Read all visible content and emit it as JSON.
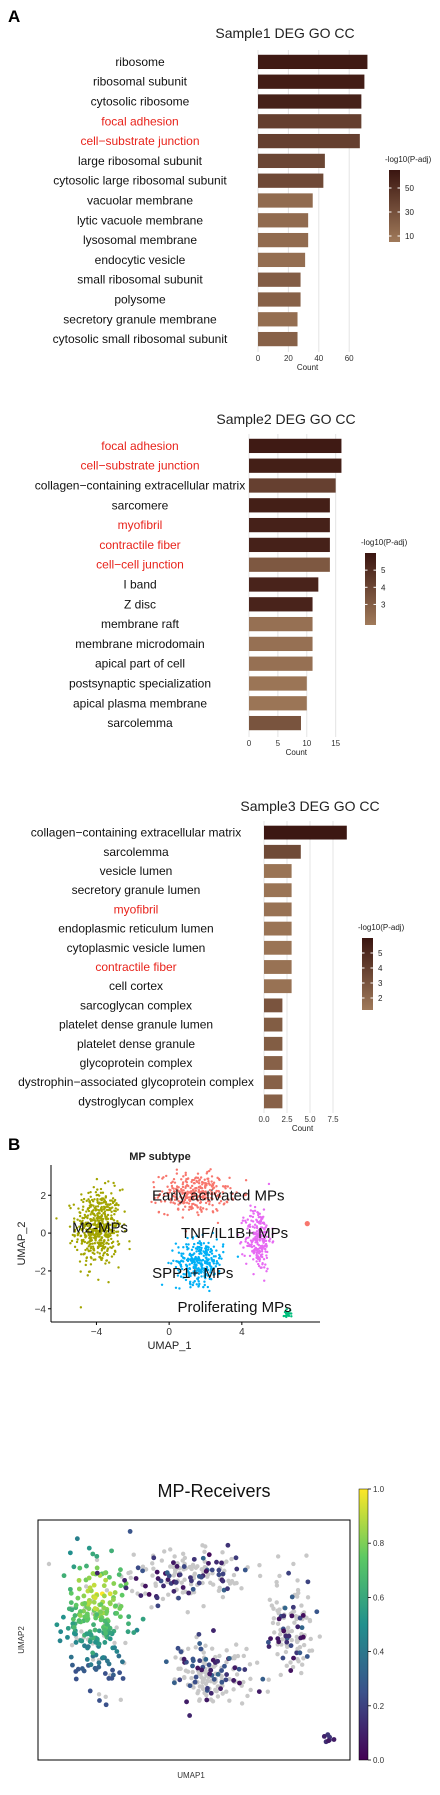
{
  "panel_labels": {
    "a": "A",
    "b": "B"
  },
  "colors": {
    "go_dark": "#3a1510",
    "go_light": "#a07a5a",
    "highlight_text": "#e8231b",
    "cluster_m2": "#a3a500",
    "cluster_early": "#f8766d",
    "cluster_tnf": "#e76bf3",
    "cluster_spp1": "#00b0f6",
    "cluster_prolif": "#00bf7d",
    "grey_points": "#c8c8c8",
    "viridis": [
      "#440154",
      "#3b528b",
      "#21908d",
      "#5dc963",
      "#fde725"
    ]
  },
  "chart_data": [
    {
      "type": "bar",
      "orientation": "horizontal",
      "title": "Sample1 DEG GO CC",
      "xlabel": "Count",
      "xlim": [
        0,
        75
      ],
      "xticks": [
        0,
        20,
        40,
        60
      ],
      "categories": [
        "ribosome",
        "ribosomal subunit",
        "cytosolic ribosome",
        "focal adhesion",
        "cell−substrate junction",
        "large ribosomal subunit",
        "cytosolic large ribosomal subunit",
        "vacuolar membrane",
        "lytic vacuole membrane",
        "lysosomal membrane",
        "endocytic vesicle",
        "small ribosomal subunit",
        "polysome",
        "secretory granule membrane",
        "cytosolic small ribosomal subunit"
      ],
      "highlighted": [
        "focal adhesion",
        "cell−substrate junction"
      ],
      "values": [
        72,
        70,
        68,
        68,
        67,
        44,
        43,
        36,
        33,
        33,
        31,
        28,
        28,
        26,
        26
      ],
      "color_values": [
        62,
        60,
        58,
        40,
        40,
        36,
        34,
        14,
        14,
        14,
        12,
        22,
        20,
        12,
        20
      ],
      "color_legend": {
        "title": "-log10(P-adj)",
        "ticks": [
          10,
          30,
          50
        ],
        "range": [
          5,
          65
        ]
      }
    },
    {
      "type": "bar",
      "orientation": "horizontal",
      "title": "Sample2 DEG GO CC",
      "xlabel": "Count",
      "xlim": [
        0,
        18
      ],
      "xticks": [
        0,
        5,
        10,
        15
      ],
      "categories": [
        "focal adhesion",
        "cell−substrate junction",
        "collagen−containing extracellular matrix",
        "sarcomere",
        "myofibril",
        "contractile fiber",
        "cell−cell junction",
        "I band",
        "Z disc",
        "membrane raft",
        "membrane microdomain",
        "apical part of cell",
        "postsynaptic specialization",
        "apical plasma membrane",
        "sarcolemma"
      ],
      "highlighted": [
        "focal adhesion",
        "cell−substrate junction",
        "myofibril",
        "contractile fiber",
        "cell−cell junction"
      ],
      "values": [
        16,
        16,
        15,
        14,
        14,
        14,
        14,
        12,
        11,
        11,
        11,
        11,
        10,
        10,
        9
      ],
      "color_values": [
        5.8,
        5.6,
        4.2,
        5.6,
        5.5,
        5.5,
        3.2,
        5.4,
        5.4,
        2.2,
        2.2,
        2.2,
        2.0,
        2.0,
        3.4
      ],
      "color_legend": {
        "title": "-log10(P-adj)",
        "ticks": [
          3,
          4,
          5
        ],
        "range": [
          1.8,
          6
        ]
      }
    },
    {
      "type": "bar",
      "orientation": "horizontal",
      "title": "Sample3 DEG GO CC",
      "xlabel": "Count",
      "xlim": [
        0,
        10
      ],
      "xticks": [
        0.0,
        2.5,
        5.0,
        7.5
      ],
      "tick_labels": [
        "0.0",
        "2.5",
        "5.0",
        "7.5"
      ],
      "categories": [
        "collagen−containing extracellular matrix",
        "sarcolemma",
        "vesicle lumen",
        "secretory granule lumen",
        "myofibril",
        "endoplasmic reticulum lumen",
        "cytoplasmic vesicle lumen",
        "contractile fiber",
        "cell cortex",
        "sarcoglycan complex",
        "platelet dense granule lumen",
        "platelet dense granule",
        "glycoprotein complex",
        "dystrophin−associated glycoprotein complex",
        "dystroglycan complex"
      ],
      "highlighted": [
        "myofibril",
        "contractile fiber"
      ],
      "values": [
        9,
        4,
        3,
        3,
        3,
        3,
        3,
        3,
        3,
        2,
        2,
        2,
        2,
        2,
        2
      ],
      "color_values": [
        5.9,
        3.5,
        1.5,
        1.5,
        1.6,
        1.5,
        1.5,
        1.6,
        1.6,
        3.0,
        2.6,
        2.6,
        2.4,
        2.4,
        2.4
      ],
      "color_legend": {
        "title": "-log10(P-adj)",
        "ticks": [
          2,
          3,
          4,
          5
        ],
        "range": [
          1.2,
          6
        ]
      }
    },
    {
      "type": "scatter",
      "title": "MP subtype",
      "xlabel": "UMAP_1",
      "ylabel": "UMAP_2",
      "xlim": [
        -6.5,
        8.3
      ],
      "ylim": [
        -4.7,
        3.6
      ],
      "xticks": [
        -4,
        0,
        4
      ],
      "yticks": [
        -4,
        -2,
        0,
        2
      ],
      "tick_labels_x": [
        "−4",
        "0",
        "4"
      ],
      "tick_labels_y": [
        "−4",
        "−2",
        "0",
        "2"
      ],
      "clusters": [
        {
          "name": "M2-MPs",
          "center": [
            -4.0,
            0.2
          ],
          "label_at": [
            -3.8,
            0.3
          ]
        },
        {
          "name": "Early activated MPs",
          "center": [
            0.8,
            2.0
          ],
          "label_at": [
            2.7,
            2.0
          ]
        },
        {
          "name": "TNF/IL1B+ MPs",
          "center": [
            4.6,
            0.2
          ],
          "label_at": [
            3.6,
            0.0
          ]
        },
        {
          "name": "SPP1+ MPs",
          "center": [
            1.6,
            -1.6
          ],
          "label_at": [
            1.3,
            -2.1
          ]
        },
        {
          "name": "Proliferating MPs",
          "center": [
            6.5,
            -4.2
          ],
          "label_at": [
            3.6,
            -3.9
          ]
        }
      ]
    },
    {
      "type": "scatter",
      "title": "MP-Receivers",
      "xlabel": "UMAP1",
      "ylabel": "UMAP2",
      "colorbar": {
        "ticks": [
          0.0,
          0.2,
          0.4,
          0.6,
          0.8,
          1.0
        ],
        "tick_labels": [
          "0.0",
          "0.2",
          "0.4",
          "0.6",
          "0.8",
          "1.0"
        ],
        "range": [
          0,
          1
        ]
      }
    }
  ]
}
